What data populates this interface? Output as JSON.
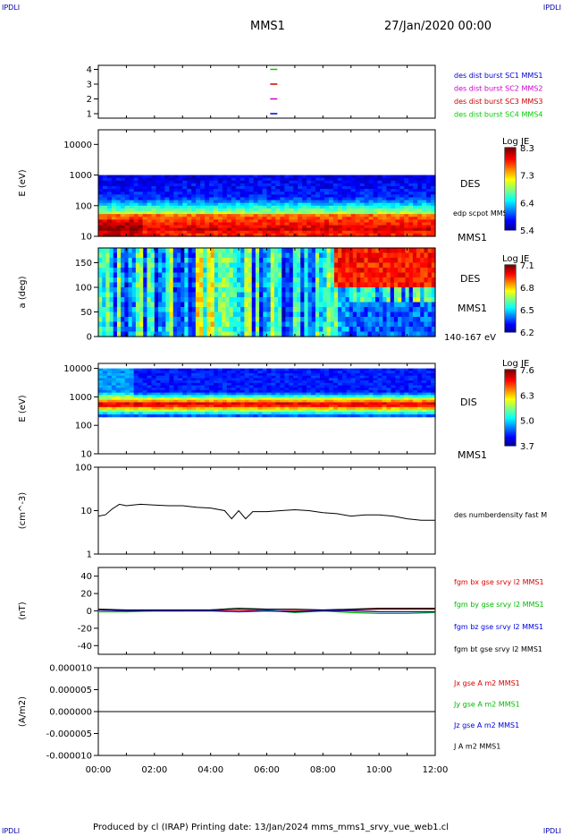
{
  "corner_label": "IPDLI",
  "header": {
    "spacecraft": "MMS1",
    "datetime": "27/Jan/2020 00:00"
  },
  "footer": {
    "text": "Produced by cl (IRAP)   Printing date: 13/Jan/2024   mms_mms1_srvy_vue_web1.cl"
  },
  "colors": {
    "mms1": "#0000cc",
    "mms2": "#cc00cc",
    "mms3": "#cc0000",
    "mms4": "#00cc00",
    "bx": "#dd0000",
    "by": "#00bb00",
    "bz": "#0000dd",
    "bt": "#000000"
  },
  "chart_data": [
    {
      "type": "line",
      "panel": "spacecraft-availability",
      "yticks": [
        "1",
        "2",
        "3",
        "4"
      ],
      "series": [
        {
          "name": "des dist burst SC1 MMS1",
          "y": 1,
          "x_time": "06:15"
        },
        {
          "name": "des dist burst SC2 MMS2",
          "y": 2,
          "x_time": "06:15"
        },
        {
          "name": "des dist burst SC3 MMS3",
          "y": 3,
          "x_time": "06:15"
        },
        {
          "name": "des dist burst SC4 MMS4",
          "y": 4,
          "x_time": "06:15"
        }
      ]
    },
    {
      "type": "heatmap",
      "panel": "des-energy-spectrogram",
      "ylabel": "E (eV)",
      "yscale": "log",
      "ylim": [
        10,
        30000
      ],
      "yticks": [
        "10",
        "100",
        "1000",
        "10000"
      ],
      "right_labels": [
        "DES",
        "edp scpot MMS1",
        "MMS1"
      ],
      "colorbar": {
        "title": "Log JE",
        "min": 5.4,
        "max": 8.3,
        "ticks": [
          "8.3",
          "7.3",
          "6.4",
          "5.4"
        ]
      }
    },
    {
      "type": "heatmap",
      "panel": "des-pitch-angle",
      "ylabel": "a (deg)",
      "ylim": [
        0,
        180
      ],
      "yticks": [
        "0",
        "50",
        "100",
        "150"
      ],
      "right_labels": [
        "DES",
        "MMS1",
        "140-167 eV"
      ],
      "colorbar": {
        "title": "Log JE",
        "min": 6.2,
        "max": 7.1,
        "ticks": [
          "7.1",
          "6.8",
          "6.5",
          "6.2"
        ]
      }
    },
    {
      "type": "heatmap",
      "panel": "dis-energy-spectrogram",
      "ylabel": "E (eV)",
      "yscale": "log",
      "ylim": [
        10,
        15000
      ],
      "yticks": [
        "10",
        "100",
        "1000",
        "10000"
      ],
      "right_labels": [
        "DIS",
        "MMS1"
      ],
      "colorbar": {
        "title": "Log JE",
        "min": 3.7,
        "max": 7.6,
        "ticks": [
          "7.6",
          "6.3",
          "5.0",
          "3.7"
        ]
      }
    },
    {
      "type": "line",
      "panel": "density",
      "ylabel": "(cm^-3)",
      "yscale": "log",
      "ylim": [
        1,
        100
      ],
      "yticks": [
        "1",
        "10",
        "100"
      ],
      "series": [
        {
          "name": "des numberdensity fast M",
          "x": [
            "00:00",
            "00:15",
            "00:30",
            "00:45",
            "01:00",
            "01:30",
            "02:00",
            "02:30",
            "03:00",
            "03:30",
            "04:00",
            "04:30",
            "04:45",
            "05:00",
            "05:15",
            "05:30",
            "06:00",
            "06:30",
            "07:00",
            "07:30",
            "08:00",
            "08:30",
            "09:00",
            "09:30",
            "10:00",
            "10:30",
            "11:00",
            "11:30",
            "12:00"
          ],
          "values": [
            7.5,
            8,
            11,
            14,
            13,
            14,
            13.5,
            13,
            13,
            12,
            11.5,
            10,
            6.5,
            10,
            6.5,
            9.5,
            9.5,
            10,
            10.5,
            10,
            9,
            8.5,
            7.5,
            8,
            8,
            7.5,
            6.5,
            6,
            6
          ]
        }
      ]
    },
    {
      "type": "line",
      "panel": "magnetic-field",
      "ylabel": "(nT)",
      "ylim": [
        -50,
        50
      ],
      "yticks": [
        "-40",
        "-20",
        "0",
        "20",
        "40"
      ],
      "x": [
        "00:00",
        "01:00",
        "02:00",
        "03:00",
        "04:00",
        "05:00",
        "06:00",
        "07:00",
        "08:00",
        "09:00",
        "10:00",
        "11:00",
        "12:00"
      ],
      "series": [
        {
          "name": "fgm bx gse srvy l2 MMS1",
          "values": [
            1,
            0,
            0,
            0,
            0,
            1,
            0,
            0,
            0,
            1,
            2,
            2,
            2
          ]
        },
        {
          "name": "fgm by gse srvy l2 MMS1",
          "values": [
            -1,
            -1,
            0,
            0,
            1,
            3,
            1,
            -2,
            0,
            -2,
            -3,
            -3,
            -2
          ]
        },
        {
          "name": "fgm bz gse srvy l2 MMS1",
          "values": [
            1,
            0,
            0,
            0,
            0,
            -1,
            0,
            -1,
            0,
            0,
            -1,
            -1,
            -1
          ]
        },
        {
          "name": "fgm bt gse srvy l2 MMS1",
          "values": [
            2,
            1,
            1,
            1,
            1,
            3,
            2,
            2,
            1,
            2,
            3,
            3,
            3
          ]
        }
      ]
    },
    {
      "type": "line",
      "panel": "current-density",
      "ylabel": "(A/m2)",
      "ylim": [
        -1e-05,
        1e-05
      ],
      "yticks": [
        "-0.000010",
        "-0.000005",
        "0.000000",
        "0.000005",
        "0.000010"
      ],
      "xticks": [
        "00:00",
        "02:00",
        "04:00",
        "06:00",
        "08:00",
        "10:00",
        "12:00"
      ],
      "series": [
        {
          "name": "Jx gse A m2 MMS1",
          "values": [
            0,
            0,
            0,
            0,
            0,
            0,
            0
          ]
        },
        {
          "name": "Jy gse A m2 MMS1",
          "values": [
            0,
            0,
            0,
            0,
            0,
            0,
            0
          ]
        },
        {
          "name": "Jz gse A m2 MMS1",
          "values": [
            0,
            0,
            0,
            0,
            0,
            0,
            0
          ]
        },
        {
          "name": "J A m2 MMS1",
          "values": [
            0,
            0,
            0,
            0,
            0,
            0,
            0
          ]
        }
      ]
    }
  ]
}
